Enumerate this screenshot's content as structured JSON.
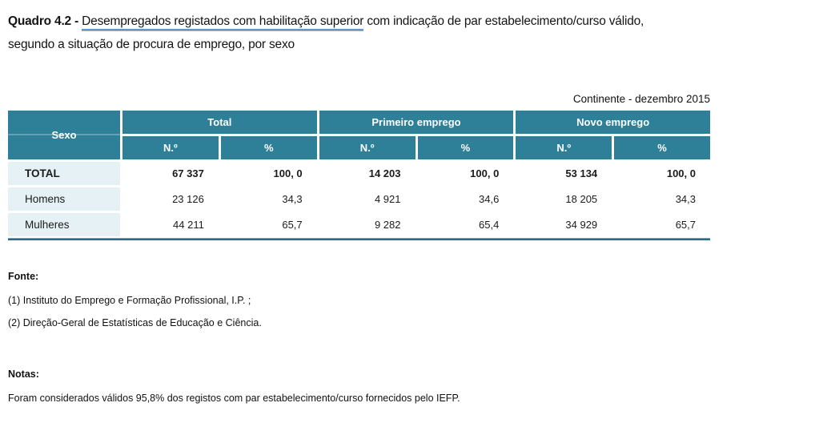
{
  "title": {
    "prefix": "Quadro 4.2 - ",
    "underlined": "Desempregados registados com habilitação superior",
    "rest_line1": " com indicação de par estabelecimento/curso válido,",
    "line2": "segundo a situação de procura de emprego, por sexo"
  },
  "period_label": "Continente - dezembro 2015",
  "table": {
    "corner_label": "Sexo",
    "groups": [
      {
        "label": "Total",
        "sub": [
          "N.º",
          "%"
        ]
      },
      {
        "label": "Primeiro emprego",
        "sub": [
          "N.º",
          "%"
        ]
      },
      {
        "label": "Novo emprego",
        "sub": [
          "N.º",
          "%"
        ]
      }
    ],
    "rows": [
      {
        "label": "TOTAL",
        "bold": true,
        "values": [
          "67 337",
          "100, 0",
          "14 203",
          "100, 0",
          "53 134",
          "100, 0"
        ]
      },
      {
        "label": "Homens",
        "bold": false,
        "values": [
          "23 126",
          "34,3",
          "4 921",
          "34,6",
          "18 205",
          "34,3"
        ]
      },
      {
        "label": "Mulheres",
        "bold": false,
        "values": [
          "44 211",
          "65,7",
          "9 282",
          "65,4",
          "34 929",
          "65,7"
        ]
      }
    ]
  },
  "source": {
    "heading": "Fonte:",
    "items": [
      "(1) Instituto do Emprego e Formação Profissional, I.P. ;",
      "(2) Direção-Geral de Estatísticas de Educação e Ciência."
    ]
  },
  "notes": {
    "heading": "Notas:",
    "items": [
      "Foram considerados válidos 95,8% dos registos com par estabelecimento/curso fornecidos pelo IEFP."
    ]
  },
  "colors": {
    "header_teal": "#2E8099",
    "row_label_bg": "#E6F1F5",
    "bottom_rule": "#256E8A",
    "underline_blue": "#5B9BD5"
  }
}
